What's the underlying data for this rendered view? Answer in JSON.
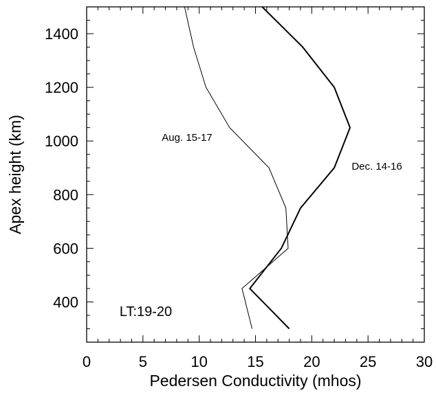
{
  "chart_data": {
    "type": "line",
    "title": "",
    "xlabel": "Pedersen Conductivity (mhos)",
    "ylabel": "Apex height (km)",
    "xlim": [
      0,
      30
    ],
    "ylim": [
      250,
      1500
    ],
    "xticks": [
      0,
      5,
      10,
      15,
      20,
      25,
      30
    ],
    "yticks": [
      400,
      600,
      800,
      1000,
      1200,
      1400
    ],
    "grid": false,
    "series": [
      {
        "name": "Aug. 15-17",
        "style": "thin",
        "color": "#000000",
        "points": [
          {
            "x": 14.7,
            "y": 300
          },
          {
            "x": 13.8,
            "y": 450
          },
          {
            "x": 17.9,
            "y": 600
          },
          {
            "x": 17.7,
            "y": 750
          },
          {
            "x": 16.2,
            "y": 900
          },
          {
            "x": 12.7,
            "y": 1050
          },
          {
            "x": 10.6,
            "y": 1200
          },
          {
            "x": 9.5,
            "y": 1350
          },
          {
            "x": 8.7,
            "y": 1500
          }
        ]
      },
      {
        "name": "Dec. 14-16",
        "style": "thick",
        "color": "#000000",
        "points": [
          {
            "x": 18.0,
            "y": 300
          },
          {
            "x": 14.5,
            "y": 450
          },
          {
            "x": 17.3,
            "y": 600
          },
          {
            "x": 19.0,
            "y": 750
          },
          {
            "x": 22.0,
            "y": 900
          },
          {
            "x": 23.4,
            "y": 1050
          },
          {
            "x": 22.0,
            "y": 1200
          },
          {
            "x": 19.2,
            "y": 1350
          },
          {
            "x": 15.6,
            "y": 1500
          }
        ]
      }
    ],
    "annotations": {
      "aug_label": "Aug. 15-17",
      "dec_label": "Dec. 14-16",
      "lt_label": "LT:19-20"
    }
  }
}
